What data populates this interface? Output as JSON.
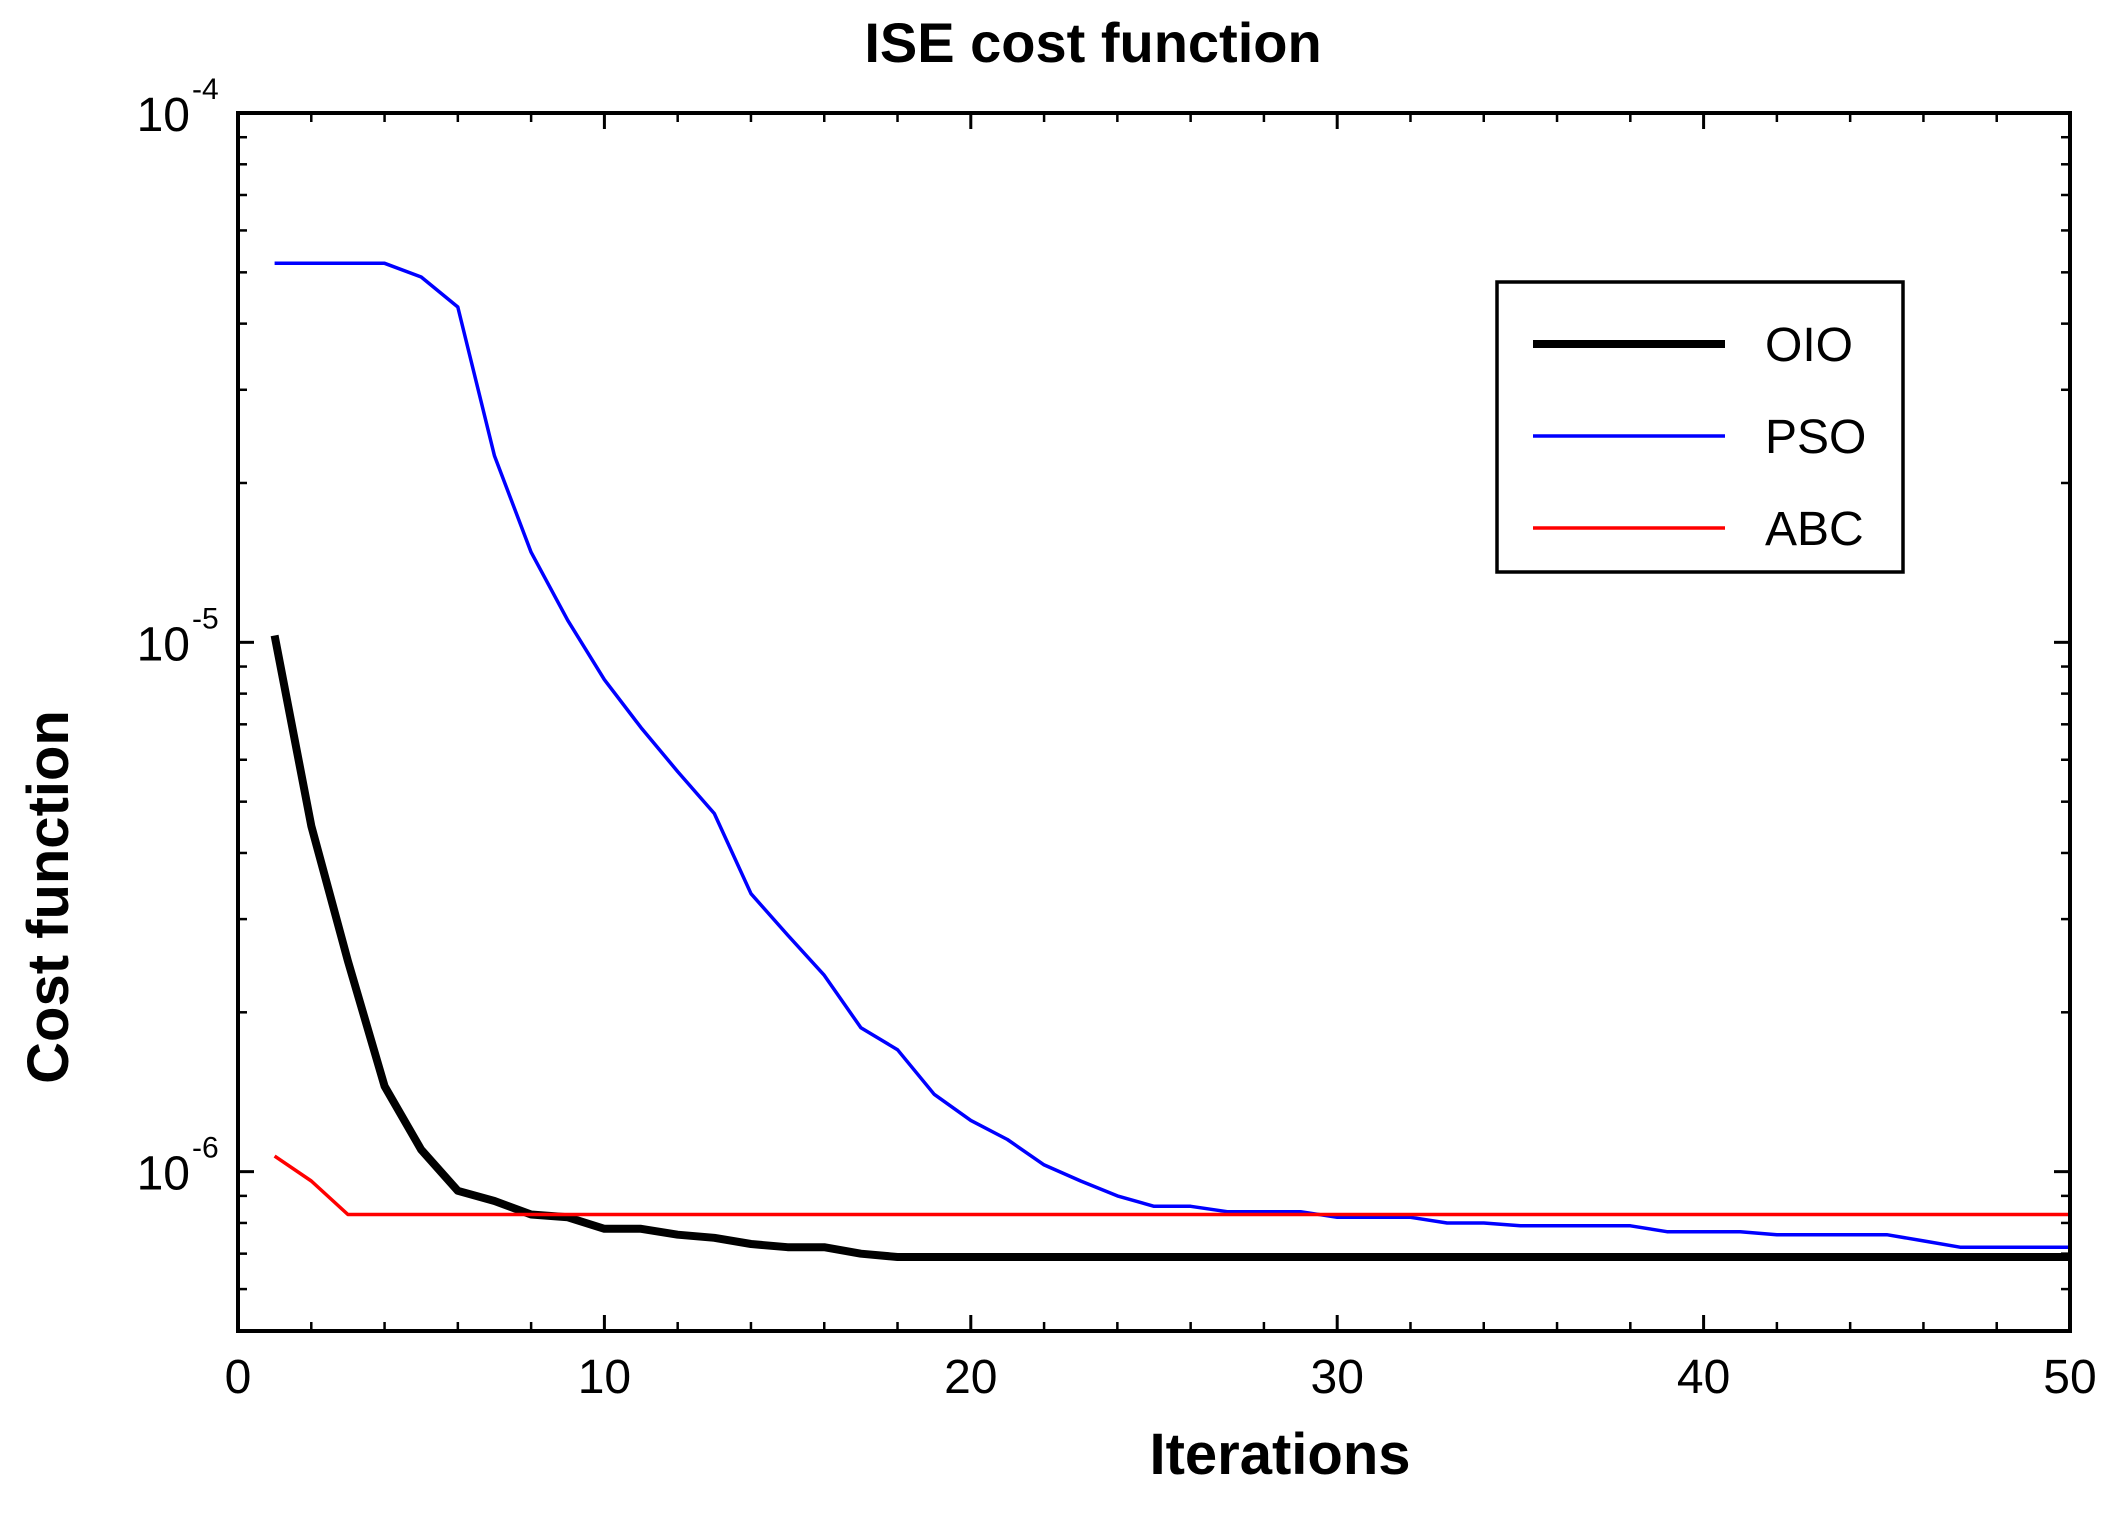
{
  "chart_data": {
    "type": "line",
    "title": "ISE cost function",
    "xlabel": "Iterations",
    "ylabel": "Cost function",
    "xlim": [
      0,
      50
    ],
    "ylim": [
      5e-07,
      0.0001
    ],
    "yscale": "log",
    "grid": false,
    "legend_position": "top-right",
    "x_ticks": [
      {
        "value": 0,
        "label": "0"
      },
      {
        "value": 10,
        "label": "10"
      },
      {
        "value": 20,
        "label": "20"
      },
      {
        "value": 30,
        "label": "30"
      },
      {
        "value": 40,
        "label": "40"
      },
      {
        "value": 50,
        "label": "50"
      }
    ],
    "y_ticks": [
      {
        "value": 0.0001,
        "base": "10",
        "exp": "-4"
      },
      {
        "value": 1e-05,
        "base": "10",
        "exp": "-5"
      },
      {
        "value": 1e-06,
        "base": "10",
        "exp": "-6"
      }
    ],
    "series": [
      {
        "name": "OIO",
        "color": "#000000",
        "x": [
          1,
          2,
          3,
          4,
          5,
          6,
          7,
          8,
          9,
          10,
          11,
          12,
          13,
          14,
          15,
          16,
          17,
          18,
          19,
          20,
          25,
          30,
          35,
          40,
          45,
          50
        ],
        "values": [
          1.03e-05,
          4.5e-06,
          2.5e-06,
          1.45e-06,
          1.1e-06,
          9.2e-07,
          8.8e-07,
          8.3e-07,
          8.2e-07,
          7.8e-07,
          7.8e-07,
          7.6e-07,
          7.5e-07,
          7.3e-07,
          7.2e-07,
          7.2e-07,
          7e-07,
          6.9e-07,
          6.9e-07,
          6.9e-07,
          6.9e-07,
          6.9e-07,
          6.9e-07,
          6.9e-07,
          6.9e-07,
          6.9e-07
        ]
      },
      {
        "name": "PSO",
        "color": "#0000ff",
        "x": [
          1,
          2,
          3,
          4,
          5,
          6,
          7,
          8,
          9,
          10,
          11,
          12,
          13,
          14,
          15,
          16,
          17,
          18,
          19,
          20,
          21,
          22,
          23,
          24,
          25,
          26,
          27,
          28,
          29,
          30,
          31,
          32,
          33,
          34,
          35,
          36,
          37,
          38,
          39,
          40,
          41,
          42,
          43,
          44,
          45,
          46,
          47,
          48,
          49,
          50
        ],
        "values": [
          5.2e-05,
          5.2e-05,
          5.2e-05,
          5.2e-05,
          4.9e-05,
          4.3e-05,
          2.25e-05,
          1.48e-05,
          1.1e-05,
          8.5e-06,
          6.9e-06,
          5.7e-06,
          4.75e-06,
          3.35e-06,
          2.8e-06,
          2.35e-06,
          1.87e-06,
          1.7e-06,
          1.4e-06,
          1.25e-06,
          1.15e-06,
          1.03e-06,
          9.6e-07,
          9e-07,
          8.6e-07,
          8.6e-07,
          8.4e-07,
          8.4e-07,
          8.4e-07,
          8.2e-07,
          8.2e-07,
          8.2e-07,
          8e-07,
          8e-07,
          7.9e-07,
          7.9e-07,
          7.9e-07,
          7.9e-07,
          7.7e-07,
          7.7e-07,
          7.7e-07,
          7.6e-07,
          7.6e-07,
          7.6e-07,
          7.6e-07,
          7.4e-07,
          7.2e-07,
          7.2e-07,
          7.2e-07,
          7.2e-07
        ]
      },
      {
        "name": "ABC",
        "color": "#ff0000",
        "x": [
          1,
          2,
          3,
          4,
          50
        ],
        "values": [
          1.07e-06,
          9.6e-07,
          8.3e-07,
          8.3e-07,
          8.3e-07
        ]
      }
    ]
  }
}
